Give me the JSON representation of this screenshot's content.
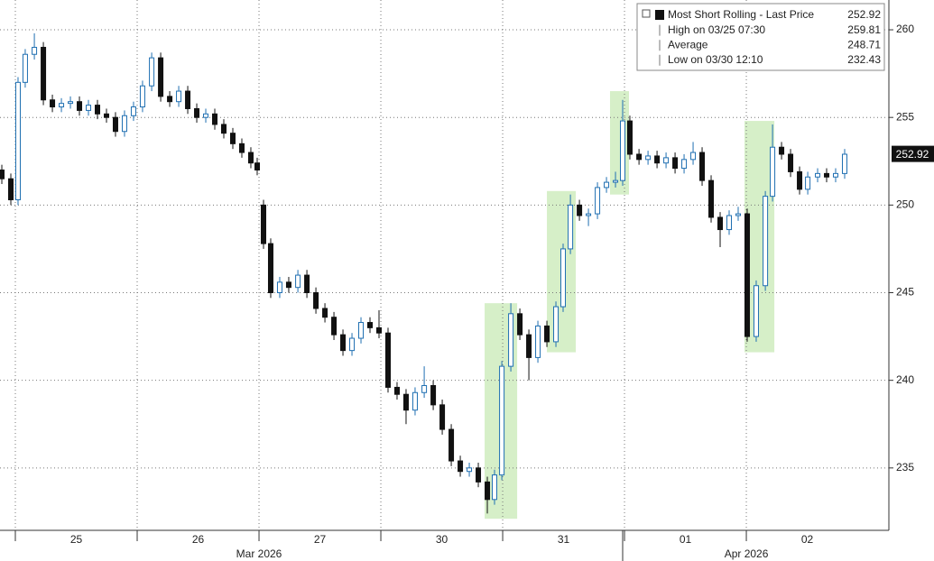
{
  "chart_data": {
    "type": "candlestick",
    "xlim": [
      -0.126,
      7.17
    ],
    "ylim": [
      231.44,
      261.7
    ],
    "yticks": [
      235,
      240,
      245,
      250,
      255,
      260
    ],
    "xticks": [
      {
        "value": 0,
        "label": "25"
      },
      {
        "value": 1,
        "label": "26"
      },
      {
        "value": 2,
        "label": "27"
      },
      {
        "value": 3,
        "label": "30"
      },
      {
        "value": 4,
        "label": "31"
      },
      {
        "value": 5,
        "label": "01"
      },
      {
        "value": 6,
        "label": "02"
      }
    ],
    "month_ticks": [
      {
        "value": 2,
        "label": "Mar 2026"
      },
      {
        "value": 6,
        "label": "Apr 2026"
      }
    ],
    "grid": true,
    "up_color": "#1f6fb2",
    "down_color": "#111111",
    "highlight_color": "#d6efc8",
    "highlights": [
      {
        "x": [
          3.852,
          4.119
        ],
        "y": [
          232.1,
          244.4
        ]
      },
      {
        "x": [
          4.363,
          4.6
        ],
        "y": [
          241.6,
          250.8
        ]
      },
      {
        "x": [
          4.881,
          5.037
        ],
        "y": [
          250.6,
          256.5
        ]
      },
      {
        "x": [
          5.985,
          6.23
        ],
        "y": [
          241.6,
          254.8
        ]
      }
    ],
    "x": [
      -0.111,
      -0.037,
      0.022,
      0.081,
      0.156,
      0.23,
      0.304,
      0.378,
      0.452,
      0.526,
      0.6,
      0.674,
      0.748,
      0.822,
      0.896,
      0.97,
      1.044,
      1.119,
      1.193,
      1.267,
      1.341,
      1.415,
      1.489,
      1.563,
      1.637,
      1.711,
      1.785,
      1.859,
      1.933,
      1.985,
      2.037,
      2.096,
      2.17,
      2.244,
      2.319,
      2.393,
      2.467,
      2.541,
      2.615,
      2.689,
      2.763,
      2.837,
      2.911,
      2.985,
      3.059,
      3.133,
      3.207,
      3.281,
      3.356,
      3.43,
      3.504,
      3.578,
      3.652,
      3.726,
      3.8,
      3.874,
      3.933,
      3.993,
      4.067,
      4.141,
      4.215,
      4.289,
      4.363,
      4.437,
      4.496,
      4.556,
      4.63,
      4.704,
      4.778,
      4.852,
      4.926,
      4.985,
      5.044,
      5.119,
      5.193,
      5.267,
      5.341,
      5.415,
      5.489,
      5.563,
      5.637,
      5.711,
      5.785,
      5.859,
      5.933,
      6.007,
      6.081,
      6.156,
      6.215,
      6.289,
      6.363,
      6.437,
      6.504,
      6.585,
      6.659,
      6.733,
      6.807
    ],
    "open": [
      252.0,
      251.5,
      250.3,
      257.0,
      258.6,
      259.0,
      256.0,
      255.6,
      255.8,
      255.9,
      255.4,
      255.7,
      255.2,
      255.0,
      254.2,
      255.1,
      255.6,
      256.8,
      258.4,
      256.2,
      255.9,
      256.5,
      255.5,
      255.0,
      255.2,
      254.6,
      254.1,
      253.5,
      253.0,
      252.4,
      250.0,
      247.8,
      245.0,
      245.6,
      245.3,
      246.0,
      245.0,
      244.1,
      243.6,
      242.6,
      241.7,
      242.4,
      243.3,
      243.0,
      242.7,
      239.6,
      239.2,
      238.3,
      239.3,
      239.7,
      238.6,
      237.2,
      235.4,
      234.8,
      235.0,
      234.2,
      233.2,
      234.6,
      240.8,
      243.8,
      242.6,
      241.3,
      243.1,
      242.2,
      244.2,
      247.5,
      250.0,
      249.4,
      249.5,
      251.0,
      251.3,
      251.4,
      254.8,
      252.9,
      252.6,
      252.8,
      252.4,
      252.7,
      252.1,
      252.6,
      253.0,
      251.4,
      249.3,
      248.6,
      249.4,
      249.5,
      242.5,
      245.4,
      250.5,
      253.3,
      252.9,
      251.9,
      250.9,
      251.6,
      251.8,
      251.6,
      251.8
    ],
    "high": [
      252.3,
      251.8,
      257.3,
      258.9,
      259.8,
      259.3,
      256.3,
      256.1,
      256.2,
      256.2,
      256.0,
      256.0,
      255.5,
      255.3,
      255.4,
      255.9,
      257.1,
      258.7,
      258.7,
      256.5,
      256.8,
      256.8,
      255.8,
      255.5,
      255.5,
      254.9,
      254.4,
      253.8,
      253.3,
      252.7,
      250.3,
      248.1,
      245.9,
      245.9,
      246.3,
      246.3,
      245.3,
      244.4,
      243.9,
      242.9,
      242.7,
      243.6,
      243.6,
      244.0,
      243.0,
      239.9,
      239.5,
      239.6,
      240.8,
      240.0,
      238.9,
      237.5,
      235.7,
      235.3,
      235.3,
      234.5,
      234.9,
      241.1,
      244.4,
      244.1,
      242.9,
      243.4,
      243.4,
      244.5,
      247.8,
      250.6,
      250.3,
      249.8,
      251.3,
      251.6,
      251.9,
      256.0,
      255.1,
      253.2,
      253.1,
      253.1,
      253.0,
      253.0,
      252.9,
      253.6,
      253.3,
      251.7,
      249.6,
      249.7,
      249.9,
      249.8,
      245.7,
      250.8,
      254.6,
      253.6,
      253.2,
      252.2,
      251.9,
      252.1,
      252.1,
      252.1,
      253.2
    ],
    "low": [
      251.2,
      250.0,
      250.0,
      256.7,
      258.3,
      255.7,
      255.3,
      255.3,
      255.5,
      255.1,
      255.1,
      254.9,
      254.7,
      253.9,
      253.9,
      254.8,
      255.3,
      256.5,
      255.9,
      255.6,
      255.6,
      255.2,
      254.7,
      254.7,
      254.3,
      253.8,
      253.2,
      252.7,
      252.1,
      251.7,
      247.5,
      244.7,
      244.7,
      245.0,
      245.0,
      244.7,
      243.8,
      243.3,
      242.3,
      241.4,
      241.4,
      242.1,
      242.7,
      242.4,
      239.3,
      238.9,
      237.5,
      238.0,
      239.0,
      238.3,
      236.9,
      235.1,
      234.5,
      234.5,
      233.9,
      232.4,
      232.9,
      234.3,
      240.5,
      242.3,
      240.0,
      241.0,
      241.9,
      241.9,
      243.9,
      247.2,
      249.1,
      248.8,
      249.2,
      250.7,
      251.0,
      251.1,
      252.6,
      252.3,
      252.3,
      252.1,
      252.1,
      251.8,
      251.8,
      252.3,
      251.1,
      249.0,
      247.6,
      248.3,
      249.1,
      242.2,
      242.2,
      245.1,
      250.2,
      252.6,
      251.6,
      250.6,
      250.6,
      251.3,
      251.3,
      251.3,
      251.5
    ],
    "close": [
      251.5,
      250.3,
      257.0,
      258.6,
      259.0,
      256.0,
      255.6,
      255.8,
      255.9,
      255.4,
      255.7,
      255.2,
      255.0,
      254.2,
      255.1,
      255.6,
      256.8,
      258.4,
      256.2,
      255.9,
      256.5,
      255.5,
      255.0,
      255.2,
      254.6,
      254.1,
      253.5,
      253.0,
      252.4,
      252.0,
      247.8,
      245.0,
      245.6,
      245.3,
      246.0,
      245.0,
      244.1,
      243.6,
      242.6,
      241.7,
      242.4,
      243.3,
      243.0,
      242.7,
      239.6,
      239.2,
      238.3,
      239.3,
      239.7,
      238.6,
      237.2,
      235.4,
      234.8,
      235.0,
      234.2,
      233.2,
      234.6,
      240.8,
      243.8,
      242.6,
      241.3,
      243.1,
      242.2,
      244.2,
      247.5,
      250.0,
      249.4,
      249.5,
      251.0,
      251.3,
      251.4,
      254.8,
      252.9,
      252.6,
      252.8,
      252.4,
      252.7,
      252.1,
      252.6,
      253.0,
      251.4,
      249.3,
      248.6,
      249.4,
      249.5,
      242.5,
      245.4,
      250.5,
      253.3,
      252.9,
      251.9,
      250.9,
      251.6,
      251.8,
      251.6,
      251.8,
      252.9
    ],
    "last_price": 252.92,
    "legend": [
      {
        "label": "Most Short Rolling - Last Price",
        "value": 252.92
      },
      {
        "label": "High on 03/25 07:30",
        "value": 259.81
      },
      {
        "label": "Average",
        "value": 248.71
      },
      {
        "label": "Low on 03/30 12:10",
        "value": 232.43
      }
    ]
  }
}
